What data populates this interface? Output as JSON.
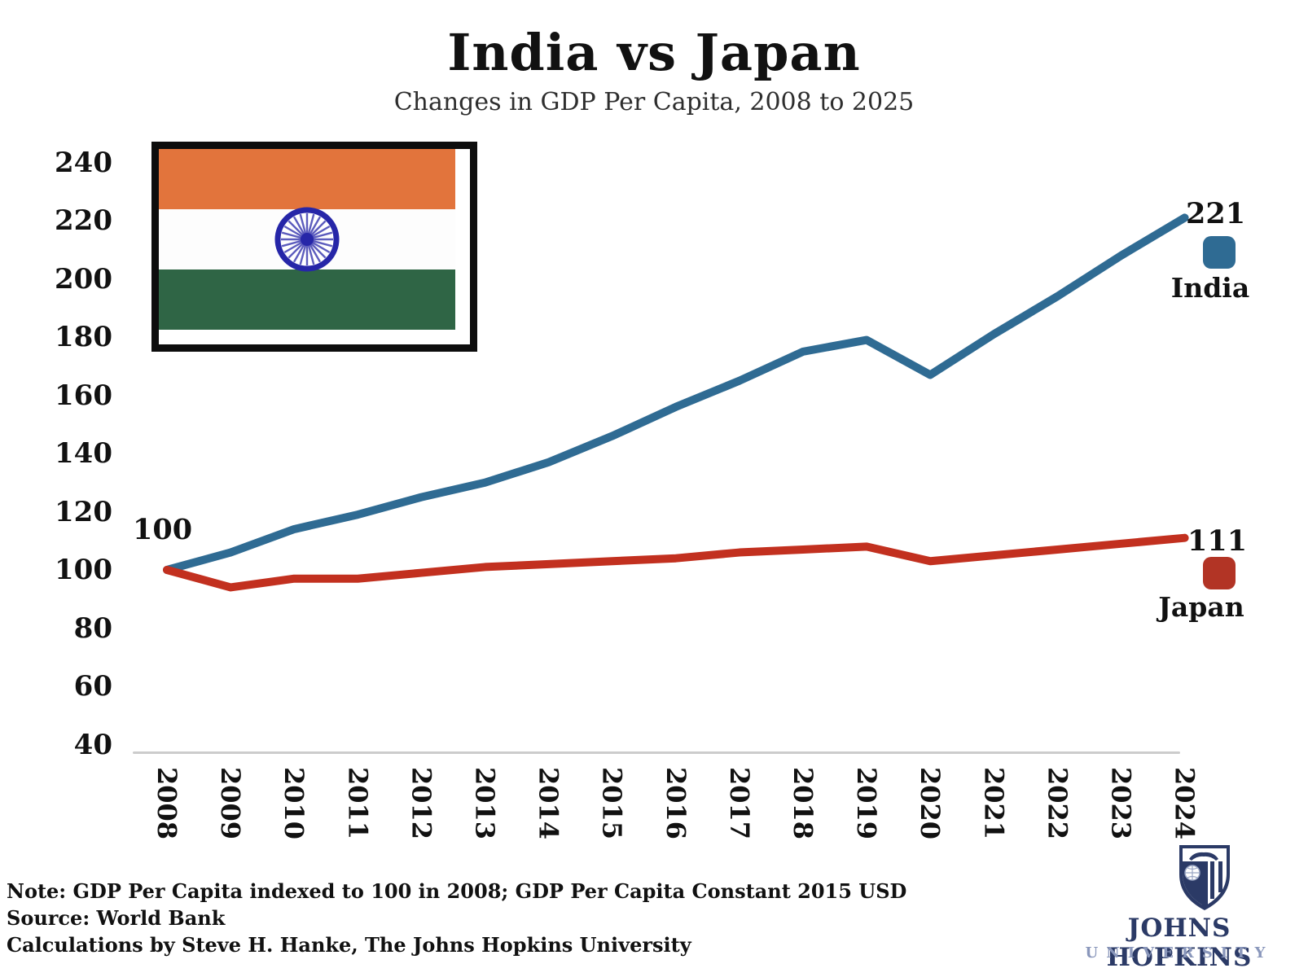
{
  "title": "India vs Japan",
  "subtitle": "Changes in GDP Per Capita, 2008 to 2025",
  "chart_data": {
    "type": "line",
    "x": [
      2008,
      2009,
      2010,
      2011,
      2012,
      2013,
      2014,
      2015,
      2016,
      2017,
      2018,
      2019,
      2020,
      2021,
      2022,
      2023,
      2024
    ],
    "series": [
      {
        "name": "India",
        "color": "#2f6b93",
        "values": [
          100,
          106,
          114,
          119,
          125,
          130,
          137,
          146,
          156,
          165,
          175,
          179,
          167,
          181,
          194,
          208,
          221
        ]
      },
      {
        "name": "Japan",
        "color": "#c2301f",
        "values": [
          100,
          94,
          97,
          97,
          99,
          101,
          102,
          103,
          104,
          106,
          107,
          108,
          103,
          105,
          107,
          109,
          111
        ]
      }
    ],
    "ylim": [
      40,
      240
    ],
    "y_ticks": [
      240,
      220,
      200,
      180,
      160,
      140,
      120,
      100,
      80,
      60,
      40
    ],
    "grid": false,
    "title": "India vs Japan",
    "subtitle": "Changes in GDP Per Capita, 2008 to 2025",
    "annotations": {
      "start_label": "100",
      "india_end_label": "221",
      "japan_end_label": "111"
    },
    "legend_position": "right of line ends"
  },
  "legend": {
    "india": {
      "label": "India",
      "value": "221",
      "color": "#2f6b93"
    },
    "japan": {
      "label": "Japan",
      "value": "111",
      "color": "#b23425"
    }
  },
  "start_label": "100",
  "flag": {
    "name": "flag-of-india",
    "saffron": "#e2743c",
    "white": "#fdfdfd",
    "green": "#2f6545",
    "chakra_blue": "#2626a8",
    "border": "#0d0d0d"
  },
  "notes": {
    "note": "Note: GDP Per Capita indexed to 100 in 2008; GDP Per Capita Constant 2015 USD",
    "source": "Source: World Bank",
    "calculations": "Calculations by Steve H. Hanke, The Johns Hopkins University"
  },
  "logo": {
    "line1": "JOHNS HOPKINS",
    "line2": "UNIVERSITY"
  }
}
